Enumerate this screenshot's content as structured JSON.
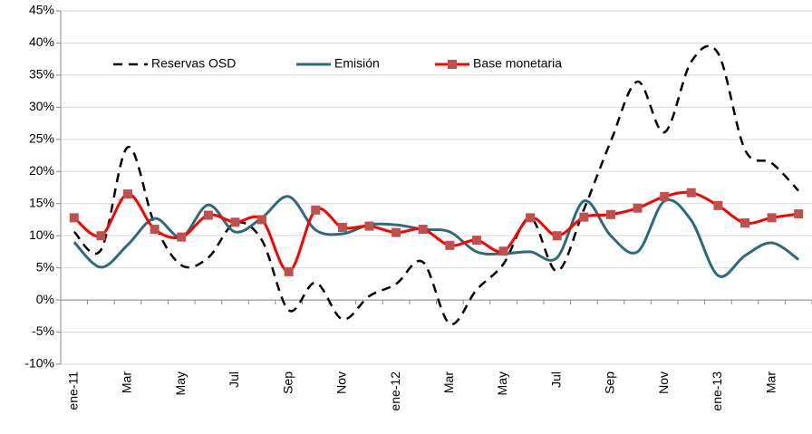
{
  "chart_data": {
    "type": "line",
    "categories": [
      "ene-11",
      null,
      "Mar",
      null,
      "May",
      null,
      "Jul",
      null,
      "Sep",
      null,
      "Nov",
      null,
      "ene-12",
      null,
      "Mar",
      null,
      "May",
      null,
      "Jul",
      null,
      "Sep",
      null,
      "Nov",
      null,
      "ene-13",
      null,
      "Mar",
      null
    ],
    "series": [
      {
        "name": "Reservas OSD",
        "color": "#000000",
        "dash": true,
        "values": [
          10.6,
          7.8,
          23.8,
          11.8,
          5.4,
          6.6,
          12,
          9.3,
          -1.6,
          2.7,
          -3,
          0.6,
          2.5,
          5.9,
          -3.7,
          1.6,
          5.6,
          12.8,
          4.5,
          14.1,
          24.7,
          34,
          26.1,
          37.1,
          38.4,
          23.4,
          21.3,
          17
        ]
      },
      {
        "name": "Emisión",
        "color": "#2f6a7b",
        "values": [
          9,
          5.1,
          8.6,
          12.7,
          9.8,
          14.8,
          10.6,
          12.8,
          16.1,
          10.9,
          10.3,
          11.7,
          11.7,
          11,
          10.6,
          7.5,
          7.2,
          7.5,
          6.6,
          15.4,
          10,
          7.5,
          15.4,
          12.4,
          3.8,
          6.9,
          8.9,
          6.3
        ]
      },
      {
        "name": "Base monetaria",
        "color": "#ff0000",
        "marker": "square",
        "marker_color": "#c0504d",
        "values": [
          12.8,
          10,
          16.5,
          11,
          9.8,
          13.2,
          12.1,
          12.5,
          4.4,
          14,
          11.3,
          11.5,
          10.5,
          11,
          8.5,
          9.3,
          7.6,
          12.8,
          10,
          12.9,
          13.3,
          14.3,
          16.1,
          16.7,
          14.7,
          12,
          12.8,
          13.4
        ]
      }
    ],
    "ylim": [
      -10,
      45
    ],
    "yticks": [
      {
        "value": -10,
        "label": "-10%"
      },
      {
        "value": -5,
        "label": "-5%"
      },
      {
        "value": 0,
        "label": "0%"
      },
      {
        "value": 5,
        "label": "5%"
      },
      {
        "value": 10,
        "label": "10%"
      },
      {
        "value": 15,
        "label": "15%"
      },
      {
        "value": 20,
        "label": "20%"
      },
      {
        "value": 25,
        "label": "25%"
      },
      {
        "value": 30,
        "label": "30%"
      },
      {
        "value": 35,
        "label": "35%"
      },
      {
        "value": 40,
        "label": "40%"
      },
      {
        "value": 45,
        "label": "45%"
      }
    ],
    "grid": true,
    "legend": "top-left"
  }
}
